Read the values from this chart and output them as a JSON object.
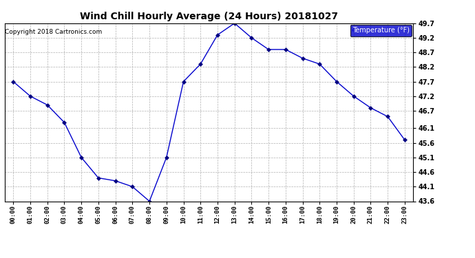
{
  "title": "Wind Chill Hourly Average (24 Hours) 20181027",
  "copyright": "Copyright 2018 Cartronics.com",
  "legend_label": "Temperature (°F)",
  "hours": [
    "00:00",
    "01:00",
    "02:00",
    "03:00",
    "04:00",
    "05:00",
    "06:00",
    "07:00",
    "08:00",
    "09:00",
    "10:00",
    "11:00",
    "12:00",
    "13:00",
    "14:00",
    "15:00",
    "16:00",
    "17:00",
    "18:00",
    "19:00",
    "20:00",
    "21:00",
    "22:00",
    "23:00"
  ],
  "values": [
    47.7,
    47.2,
    46.9,
    46.3,
    45.1,
    44.4,
    44.3,
    44.1,
    43.6,
    45.1,
    47.7,
    48.3,
    49.3,
    49.7,
    49.2,
    48.8,
    48.8,
    48.5,
    48.3,
    47.7,
    47.2,
    46.8,
    46.5,
    45.7
  ],
  "ylim": [
    43.6,
    49.7
  ],
  "yticks": [
    43.6,
    44.1,
    44.6,
    45.1,
    45.6,
    46.1,
    46.7,
    47.2,
    47.7,
    48.2,
    48.7,
    49.2,
    49.7
  ],
  "line_color": "#0000cc",
  "marker_color": "#000080",
  "bg_color": "#ffffff",
  "plot_bg_color": "#ffffff",
  "grid_color": "#b0b0b0",
  "title_color": "#000000",
  "legend_bg": "#0000cc",
  "legend_text_color": "#ffffff"
}
